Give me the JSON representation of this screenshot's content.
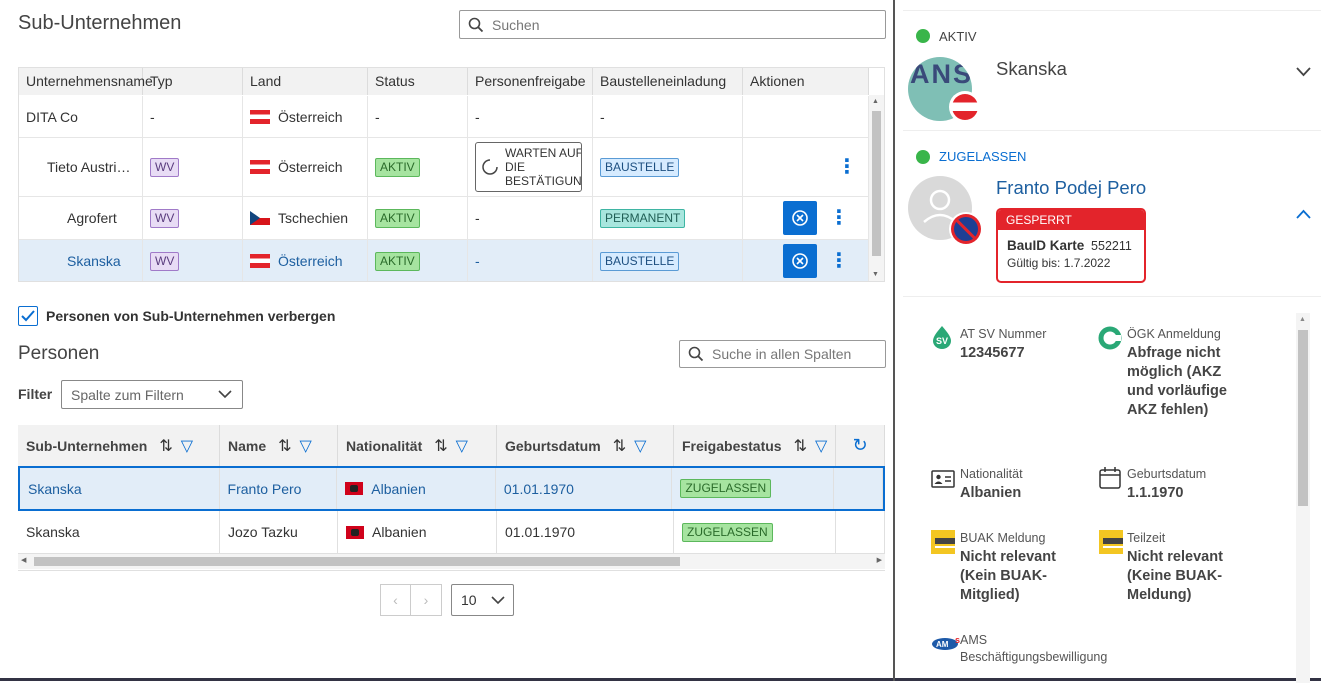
{
  "companies": {
    "title": "Sub-Unternehmen",
    "search_placeholder": "Suchen",
    "columns": [
      "Unternehmensname",
      "Typ",
      "Land",
      "Status",
      "Personenfreigabe",
      "Baustelleneinladung",
      "Aktionen"
    ],
    "rows": [
      {
        "name": "DITA Co",
        "type": "-",
        "country": "Österreich",
        "status": "-",
        "release": "-",
        "invite": "-"
      },
      {
        "name": "Tieto Austri…",
        "type": "WV",
        "country": "Österreich",
        "status": "AKTIV",
        "release": "WARTEN AUF DIE BESTÄTIGUNG",
        "invite": "BAUSTELLE"
      },
      {
        "name": "Agrofert",
        "type": "WV",
        "country": "Tschechien",
        "status": "AKTIV",
        "release": "-",
        "invite": "PERMANENT"
      },
      {
        "name": "Skanska",
        "type": "WV",
        "country": "Österreich",
        "status": "AKTIV",
        "release": "-",
        "invite": "BAUSTELLE"
      }
    ],
    "hide_checkbox_label": "Personen von Sub-Unternehmen verbergen"
  },
  "persons": {
    "title": "Personen",
    "search_placeholder": "Suche in allen Spalten",
    "filter_label": "Filter",
    "filter_placeholder": "Spalte zum Filtern",
    "columns": [
      "Sub-Unternehmen",
      "Name",
      "Nationalität",
      "Geburtsdatum",
      "Freigabestatus"
    ],
    "rows": [
      {
        "company": "Skanska",
        "name": "Franto Pero",
        "nationality": "Albanien",
        "birth": "01.01.1970",
        "status": "ZUGELASSEN"
      },
      {
        "company": "Skanska",
        "name": "Jozo Tazku",
        "nationality": "Albanien",
        "birth": "01.01.1970",
        "status": "ZUGELASSEN"
      }
    ],
    "page_size": "10"
  },
  "detail": {
    "company_status": "AKTIV",
    "company_avatar_text": "ANS",
    "company_name": "Skanska",
    "person_status": "ZUGELASSEN",
    "person_name": "Franto Podej Pero",
    "card_status": "GESPERRT",
    "card_title": "BauID Karte",
    "card_number": "552211",
    "card_valid": "Gültig bis: 1.7.2022",
    "fields": {
      "sv_label": "AT SV Nummer",
      "sv_value": "12345677",
      "ogk_label": "ÖGK Anmeldung",
      "ogk_value": "Abfrage nicht möglich (AKZ und vorläufige AKZ fehlen)",
      "nat_label": "Nationalität",
      "nat_value": "Albanien",
      "birth_label": "Geburtsdatum",
      "birth_value": "1.1.1970",
      "buak_label": "BUAK Meldung",
      "buak_value": "Nicht relevant (Kein BUAK-Mitglied)",
      "teil_label": "Teilzeit",
      "teil_value": "Nicht relevant (Keine BUAK-Meldung)",
      "ams_label": "AMS",
      "ams_sub": "Beschäftigungsbewilligung"
    }
  },
  "colors": {
    "accent": "#0a6ed1",
    "ok": "#39b54a",
    "danger": "#e3242b"
  }
}
